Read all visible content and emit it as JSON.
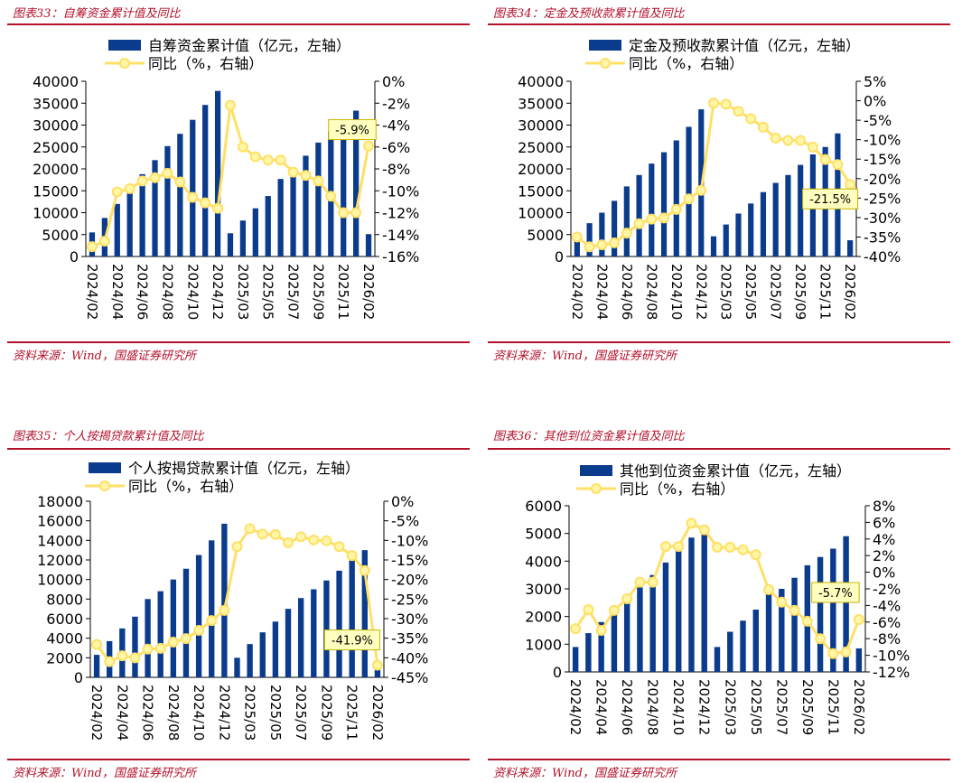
{
  "source_text": "资料来源：Wind，国盛证券研究所",
  "colors": {
    "bar": "#0b3b8c",
    "line": "#ffe066",
    "marker_fill": "#fff6a8",
    "title_red": "#b3122a"
  },
  "charts": [
    {
      "figure_title": "图表33：自筹资金累计值及同比",
      "chart_data": {
        "type": "bar+line",
        "categories": [
          "2024/02",
          "2024/03",
          "2024/04",
          "2024/05",
          "2024/06",
          "2024/07",
          "2024/08",
          "2024/09",
          "2024/10",
          "2024/11",
          "2024/12",
          "2025/02",
          "2025/03",
          "2025/04",
          "2025/05",
          "2025/06",
          "2025/07",
          "2025/08",
          "2025/09",
          "2025/10",
          "2025/11",
          "2025/12",
          "2026/02"
        ],
        "x_tick_labels": [
          "2024/02",
          "2024/04",
          "2024/06",
          "2024/08",
          "2024/10",
          "2024/12",
          "2025/03",
          "2025/05",
          "2025/07",
          "2025/09",
          "2025/11",
          "2026/02"
        ],
        "series": [
          {
            "name": "自筹资金累计值（亿元，左轴）",
            "axis": "left",
            "kind": "bar",
            "values": [
              5500,
              8800,
              12000,
              15300,
              18800,
              22000,
              25200,
              28000,
              31200,
              34600,
              37800,
              5300,
              8200,
              11000,
              13800,
              17700,
              20200,
              23000,
              26000,
              28600,
              30600,
              33300,
              5100
            ]
          },
          {
            "name": "同比（%，右轴）",
            "axis": "right",
            "kind": "line",
            "values": [
              -15.1,
              -14.6,
              -10.1,
              -9.8,
              -9.1,
              -8.8,
              -8.4,
              -9.2,
              -10.6,
              -11.1,
              -11.6,
              -2.2,
              -6.0,
              -6.9,
              -7.2,
              -7.2,
              -8.3,
              -8.6,
              -9.1,
              -10.5,
              -12.0,
              -12.0,
              -5.9
            ]
          }
        ],
        "y_left": {
          "min": 0,
          "max": 40000,
          "ticks": [
            "0",
            "5000",
            "10000",
            "15000",
            "20000",
            "25000",
            "30000",
            "35000",
            "40000"
          ]
        },
        "y_right": {
          "min": -16,
          "max": 0,
          "ticks": [
            "-16%",
            "-14%",
            "-12%",
            "-10%",
            "-8%",
            "-6%",
            "-4%",
            "-2%",
            "0%"
          ]
        },
        "annotation": "-5.9%"
      }
    },
    {
      "figure_title": "图表34：定金及预收款累计值及同比",
      "chart_data": {
        "type": "bar+line",
        "categories": [
          "2024/02",
          "2024/03",
          "2024/04",
          "2024/05",
          "2024/06",
          "2024/07",
          "2024/08",
          "2024/09",
          "2024/10",
          "2024/11",
          "2024/12",
          "2025/02",
          "2025/03",
          "2025/04",
          "2025/05",
          "2025/06",
          "2025/07",
          "2025/08",
          "2025/09",
          "2025/10",
          "2025/11",
          "2025/12",
          "2026/02"
        ],
        "x_tick_labels": [
          "2024/02",
          "2024/04",
          "2024/06",
          "2024/08",
          "2024/10",
          "2024/12",
          "2025/03",
          "2025/05",
          "2025/07",
          "2025/09",
          "2025/11",
          "2026/02"
        ],
        "series": [
          {
            "name": "定金及预收款累计值（亿元，左轴）",
            "axis": "left",
            "kind": "bar",
            "values": [
              5000,
              7600,
              10000,
              12700,
              16000,
              18600,
              21200,
              23800,
              26500,
              29600,
              33600,
              4600,
              7300,
              9800,
              12100,
              14700,
              16800,
              18600,
              20900,
              23300,
              25000,
              28100,
              3700
            ]
          },
          {
            "name": "同比（%，右轴）",
            "axis": "right",
            "kind": "line",
            "values": [
              -35.0,
              -37.5,
              -37.0,
              -36.5,
              -34.0,
              -31.6,
              -30.4,
              -30.1,
              -27.9,
              -25.2,
              -23.0,
              -0.6,
              -0.9,
              -2.7,
              -4.6,
              -6.8,
              -9.6,
              -10.2,
              -10.2,
              -11.9,
              -15.1,
              -16.4,
              -21.5
            ]
          }
        ],
        "y_left": {
          "min": 0,
          "max": 40000,
          "ticks": [
            "0",
            "5000",
            "10000",
            "15000",
            "20000",
            "25000",
            "30000",
            "35000",
            "40000"
          ]
        },
        "y_right": {
          "min": -40,
          "max": 5,
          "ticks": [
            "-40%",
            "-35%",
            "-30%",
            "-25%",
            "-20%",
            "-15%",
            "-10%",
            "-5%",
            "0%",
            "5%"
          ]
        },
        "annotation": "-21.5%"
      }
    },
    {
      "figure_title": "图表35：个人按揭贷款累计值及同比",
      "chart_data": {
        "type": "bar+line",
        "categories": [
          "2024/02",
          "2024/03",
          "2024/04",
          "2024/05",
          "2024/06",
          "2024/07",
          "2024/08",
          "2024/09",
          "2024/10",
          "2024/11",
          "2024/12",
          "2025/02",
          "2025/03",
          "2025/04",
          "2025/05",
          "2025/06",
          "2025/07",
          "2025/08",
          "2025/09",
          "2025/10",
          "2025/11",
          "2025/12",
          "2026/02"
        ],
        "x_tick_labels": [
          "2024/02",
          "2024/04",
          "2024/06",
          "2024/08",
          "2024/10",
          "2024/12",
          "2025/03",
          "2025/05",
          "2025/07",
          "2025/09",
          "2025/11",
          "2026/02"
        ],
        "series": [
          {
            "name": "个人按揭贷款累计值（亿元，左轴）",
            "axis": "left",
            "kind": "bar",
            "values": [
              2300,
              3700,
              5000,
              6200,
              8000,
              8800,
              10000,
              11100,
              12500,
              14000,
              15700,
              2000,
              3400,
              4600,
              5700,
              7000,
              8100,
              9000,
              9900,
              10900,
              12000,
              13000,
              1200
            ]
          },
          {
            "name": "同比（%，右轴）",
            "axis": "right",
            "kind": "line",
            "values": [
              -36.6,
              -41.0,
              -39.5,
              -40.0,
              -37.8,
              -37.6,
              -36.0,
              -35.1,
              -33.0,
              -30.5,
              -27.9,
              -11.6,
              -7.0,
              -8.4,
              -8.5,
              -10.6,
              -9.1,
              -9.9,
              -10.1,
              -11.6,
              -13.9,
              -17.7,
              -41.9
            ]
          }
        ],
        "y_left": {
          "min": 0,
          "max": 18000,
          "ticks": [
            "0",
            "2000",
            "4000",
            "6000",
            "8000",
            "10000",
            "12000",
            "14000",
            "16000",
            "18000"
          ]
        },
        "y_right": {
          "min": -45,
          "max": 0,
          "ticks": [
            "-45%",
            "-40%",
            "-35%",
            "-30%",
            "-25%",
            "-20%",
            "-15%",
            "-10%",
            "-5%",
            "0%"
          ]
        },
        "annotation": "-41.9%"
      }
    },
    {
      "figure_title": "图表36：其他到位资金累计值及同比",
      "chart_data": {
        "type": "bar+line",
        "categories": [
          "2024/02",
          "2024/03",
          "2024/04",
          "2024/05",
          "2024/06",
          "2024/07",
          "2024/08",
          "2024/09",
          "2024/10",
          "2024/11",
          "2024/12",
          "2025/02",
          "2025/03",
          "2025/04",
          "2025/05",
          "2025/06",
          "2025/07",
          "2025/08",
          "2025/09",
          "2025/10",
          "2025/11",
          "2025/12",
          "2026/02"
        ],
        "x_tick_labels": [
          "2024/02",
          "2024/04",
          "2024/06",
          "2024/08",
          "2024/10",
          "2024/12",
          "2025/03",
          "2025/05",
          "2025/07",
          "2025/09",
          "2025/11",
          "2026/02"
        ],
        "series": [
          {
            "name": "其他到位资金累计值（亿元，左轴）",
            "axis": "left",
            "kind": "bar",
            "values": [
              900,
              1400,
              1800,
              2200,
              2650,
              3050,
              3500,
              3950,
              4400,
              4850,
              5200,
              900,
              1450,
              1850,
              2250,
              2800,
              3000,
              3400,
              3850,
              4150,
              4450,
              4900,
              850
            ]
          },
          {
            "name": "同比（%，右轴）",
            "axis": "right",
            "kind": "line",
            "values": [
              -6.8,
              -4.5,
              -7.0,
              -4.6,
              -3.2,
              -1.2,
              -1.2,
              3.1,
              3.1,
              5.9,
              5.1,
              3.0,
              3.0,
              2.7,
              2.1,
              -2.1,
              -3.6,
              -4.6,
              -5.9,
              -8.0,
              -9.8,
              -9.6,
              -5.7
            ]
          }
        ],
        "y_left": {
          "min": 0,
          "max": 6000,
          "ticks": [
            "0",
            "1000",
            "2000",
            "3000",
            "4000",
            "5000",
            "6000"
          ]
        },
        "y_right": {
          "min": -12,
          "max": 8,
          "ticks": [
            "-12%",
            "-10%",
            "-8%",
            "-6%",
            "-4%",
            "-2%",
            "0%",
            "2%",
            "4%",
            "6%",
            "8%"
          ]
        },
        "annotation": "-5.7%"
      }
    }
  ]
}
